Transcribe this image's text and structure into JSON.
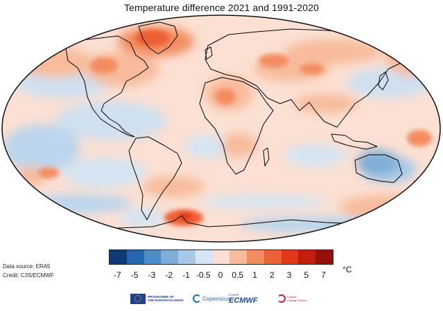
{
  "title": "Temperature difference 2021 and 1991-2020",
  "legend": {
    "unit": "°C",
    "tick_labels": [
      "-7",
      "-5",
      "-3",
      "-2",
      "-1",
      "-0.5",
      "0",
      "0.5",
      "1",
      "2",
      "3",
      "5",
      "7"
    ],
    "bin_colors": [
      "#0e3b75",
      "#2366ad",
      "#4d8cc7",
      "#7eaed8",
      "#a8c9e6",
      "#d6e5f3",
      "#fbe0d3",
      "#f8bc9c",
      "#f38d61",
      "#ed6136",
      "#e2391a",
      "#c11e0d",
      "#951009"
    ]
  },
  "sources": {
    "data_source": "Data source: ERA5",
    "credit": "Credit: C3S/ECMWF"
  },
  "logos": {
    "eu_line1": "PROGRAMME OF",
    "eu_line2": "THE EUROPEAN UNION",
    "copernicus": "Copernicus",
    "ecmwf_top": "ECMWF",
    "ecmwf": "ECMWF",
    "c3s_line1": "Climate",
    "c3s_line2": "Change Service"
  }
}
